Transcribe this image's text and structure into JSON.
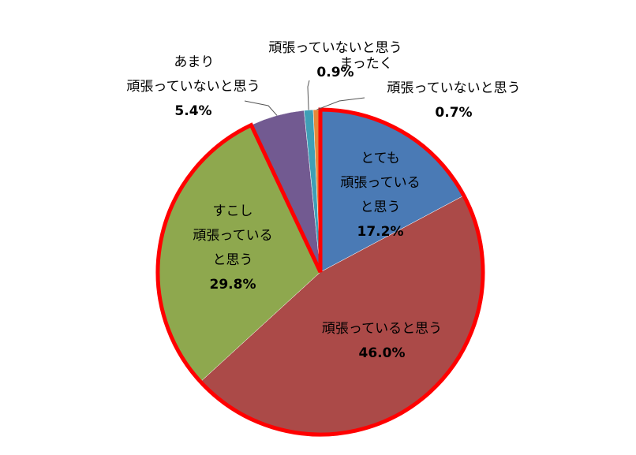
{
  "chart_data": {
    "type": "pie",
    "start": "12 o'clock, clockwise",
    "slices": [
      {
        "label": "とても 頑張っている と思う",
        "lines": [
          "とても",
          "頑張っている",
          "と思う"
        ],
        "value": 17.2,
        "value_label": "17.2%",
        "color": "#4a7ab5"
      },
      {
        "label": "頑張っていると思う",
        "lines": [
          "頑張っていると思う"
        ],
        "value": 46.0,
        "value_label": "46.0%",
        "color": "#ab4a48"
      },
      {
        "label": "すこし 頑張っている と思う",
        "lines": [
          "すこし",
          "頑張っている",
          "と思う"
        ],
        "value": 29.8,
        "value_label": "29.8%",
        "color": "#8ea84e"
      },
      {
        "label": "あまり 頑張っていないと思う",
        "lines": [
          "あまり",
          "頑張っていないと思う"
        ],
        "value": 5.4,
        "value_label": "5.4%",
        "color": "#725a91"
      },
      {
        "label": "頑張っていないと思う",
        "lines": [
          "頑張っていないと思う"
        ],
        "value": 0.9,
        "value_label": "0.9%",
        "color": "#3f9fb6"
      },
      {
        "label": "まったく 頑張っていないと思う",
        "lines": [
          "まったく",
          "頑張っていないと思う"
        ],
        "value": 0.7,
        "value_label": "0.7%",
        "color": "#e6883a"
      }
    ],
    "highlight": {
      "slices": [
        0,
        1,
        2
      ],
      "outline_color": "#ff0000"
    }
  }
}
